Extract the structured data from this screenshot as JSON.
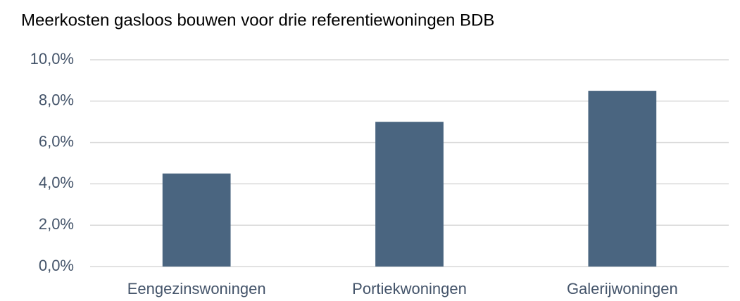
{
  "chart_data": {
    "type": "bar",
    "title": "Meerkosten gasloos bouwen voor drie referentiewoningen BDB",
    "categories": [
      "Eengezinswoningen",
      "Portiekwoningen",
      "Galerijwoningen"
    ],
    "values": [
      4.5,
      7.0,
      8.5
    ],
    "color": "#4a6580",
    "ylim": [
      0,
      10
    ],
    "yticks": [
      {
        "value": 0,
        "label": "0,0%"
      },
      {
        "value": 2,
        "label": "2,0%"
      },
      {
        "value": 4,
        "label": "4,0%"
      },
      {
        "value": 6,
        "label": "6,0%"
      },
      {
        "value": 8,
        "label": "8,0%"
      },
      {
        "value": 10,
        "label": "10,0%"
      }
    ],
    "grid": true
  }
}
